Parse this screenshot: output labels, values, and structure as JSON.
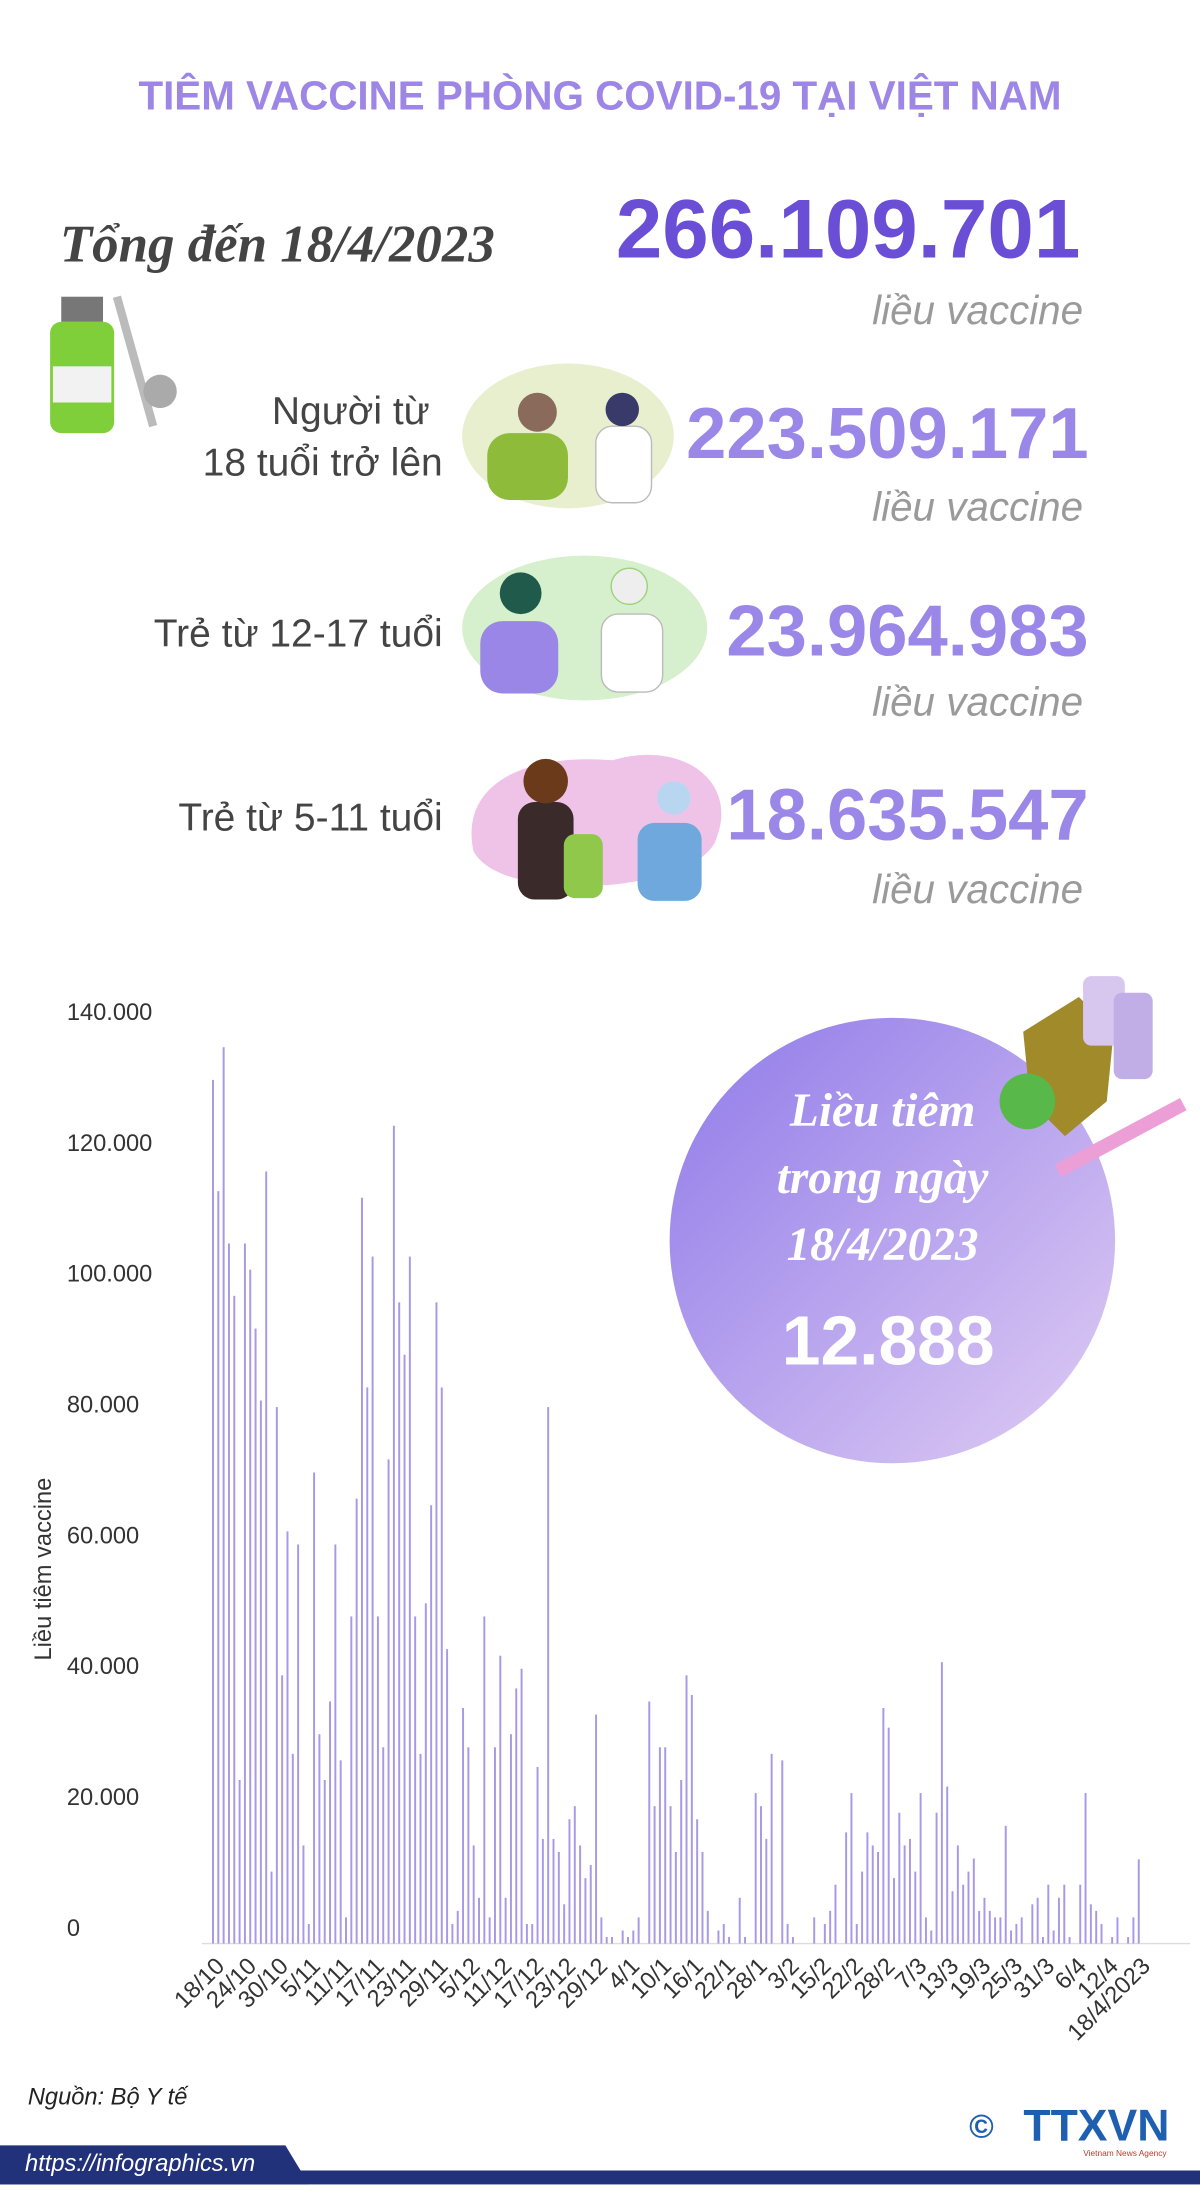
{
  "title": "TIÊM VACCINE PHÒNG COVID-19 TẠI VIỆT NAM",
  "total": {
    "label": "Tổng đến 18/4/2023",
    "value": "266.109.701",
    "unit": "liều vaccine"
  },
  "groups": [
    {
      "label_lines": [
        "Người từ",
        "18 tuổi trở lên"
      ],
      "value": "223.509.171",
      "unit": "liều vaccine"
    },
    {
      "label_lines": [
        "Trẻ từ 12-17 tuổi"
      ],
      "value": "23.964.983",
      "unit": "liều vaccine"
    },
    {
      "label_lines": [
        "Trẻ từ 5-11 tuổi"
      ],
      "value": "18.635.547",
      "unit": "liều vaccine"
    }
  ],
  "daily": {
    "label_lines": [
      "Liều tiêm",
      "trong ngày",
      "18/4/2023"
    ],
    "value": "12.888"
  },
  "chart_data": {
    "type": "bar",
    "y_label": "Liều tiêm vaccine",
    "color": "#a898e6",
    "ylim": [
      0,
      140000
    ],
    "yticks": [
      0,
      {
        "value": 20000,
        "label": "20.000"
      },
      {
        "value": 40000,
        "label": "40.000"
      },
      {
        "value": 60000,
        "label": "60.000"
      },
      {
        "value": 80000,
        "label": "80.000"
      },
      {
        "value": 100000,
        "label": "100.000"
      },
      {
        "value": 120000,
        "label": "120.000"
      },
      {
        "value": 140000,
        "label": "140.000"
      }
    ],
    "categories": [
      "18/10",
      null,
      null,
      null,
      null,
      null,
      "24/10",
      null,
      null,
      null,
      null,
      null,
      "30/10",
      null,
      null,
      null,
      null,
      null,
      "5/11",
      null,
      null,
      null,
      null,
      null,
      "11/11",
      null,
      null,
      null,
      null,
      null,
      "17/11",
      null,
      null,
      null,
      null,
      null,
      "23/11",
      null,
      null,
      null,
      null,
      null,
      "29/11",
      null,
      null,
      null,
      null,
      null,
      "5/12",
      null,
      null,
      null,
      null,
      null,
      "11/12",
      null,
      null,
      null,
      null,
      null,
      "17/12",
      null,
      null,
      null,
      null,
      null,
      "23/12",
      null,
      null,
      null,
      null,
      null,
      "29/12",
      null,
      null,
      null,
      null,
      null,
      "4/1",
      null,
      null,
      null,
      null,
      null,
      "10/1",
      null,
      null,
      null,
      null,
      null,
      "16/1",
      null,
      null,
      null,
      null,
      null,
      "22/1",
      null,
      null,
      null,
      null,
      null,
      "28/1",
      null,
      null,
      null,
      null,
      null,
      "3/2",
      null,
      null,
      null,
      null,
      null,
      "15/2",
      null,
      null,
      null,
      null,
      null,
      "22/2",
      null,
      null,
      null,
      null,
      null,
      "28/2",
      null,
      null,
      null,
      null,
      null,
      "7/3",
      null,
      null,
      null,
      null,
      null,
      "13/3",
      null,
      null,
      null,
      null,
      null,
      "19/3",
      null,
      null,
      null,
      null,
      null,
      "25/3",
      null,
      null,
      null,
      null,
      null,
      "31/3",
      null,
      null,
      null,
      null,
      null,
      "6/4",
      null,
      null,
      null,
      null,
      null,
      "12/4",
      null,
      null,
      null,
      null,
      null,
      "18/4/2023"
    ],
    "values": [
      132000,
      115000,
      137000,
      107000,
      99000,
      25000,
      107000,
      103000,
      94000,
      83000,
      118000,
      11000,
      82000,
      41000,
      63000,
      29000,
      61000,
      15000,
      3000,
      72000,
      32000,
      25000,
      37000,
      61000,
      28000,
      4000,
      50000,
      68000,
      114000,
      85000,
      105000,
      50000,
      30000,
      74000,
      125000,
      98000,
      90000,
      105000,
      50000,
      29000,
      52000,
      67000,
      98000,
      85000,
      45000,
      3000,
      5000,
      36000,
      30000,
      15000,
      7000,
      50000,
      4000,
      30000,
      44000,
      7000,
      32000,
      39000,
      42000,
      3000,
      3000,
      27000,
      16000,
      82000,
      16000,
      14000,
      6000,
      19000,
      21000,
      15000,
      10000,
      12000,
      35000,
      4000,
      1000,
      1000,
      0,
      2000,
      1000,
      2000,
      4000,
      0,
      37000,
      21000,
      30000,
      30000,
      21000,
      14000,
      25000,
      41000,
      38000,
      19000,
      14000,
      5000,
      0,
      2000,
      3000,
      1000,
      0,
      7000,
      1000,
      0,
      23000,
      21000,
      16000,
      29000,
      0,
      28000,
      3000,
      1000,
      0,
      0,
      0,
      4000,
      0,
      3000,
      5000,
      9000,
      0,
      17000,
      23000,
      3000,
      11000,
      17000,
      15000,
      14000,
      36000,
      33000,
      10000,
      20000,
      15000,
      16000,
      11000,
      23000,
      4000,
      2000,
      20000,
      43000,
      24000,
      8000,
      15000,
      9000,
      11000,
      13000,
      5000,
      7000,
      5000,
      4000,
      4000,
      18000,
      2000,
      3000,
      4000,
      0,
      6000,
      7000,
      1000,
      9000,
      2000,
      7000,
      9000,
      1000,
      0,
      9000,
      23000,
      6000,
      5000,
      3000,
      0,
      1000,
      4000,
      0,
      1000,
      4000,
      12888
    ]
  },
  "source": "Nguồn: Bộ Y tế",
  "url": "https://infographics.vn",
  "logo": "TTXVN",
  "logo_sub": "Vietnam News Agency",
  "copyright": "©"
}
